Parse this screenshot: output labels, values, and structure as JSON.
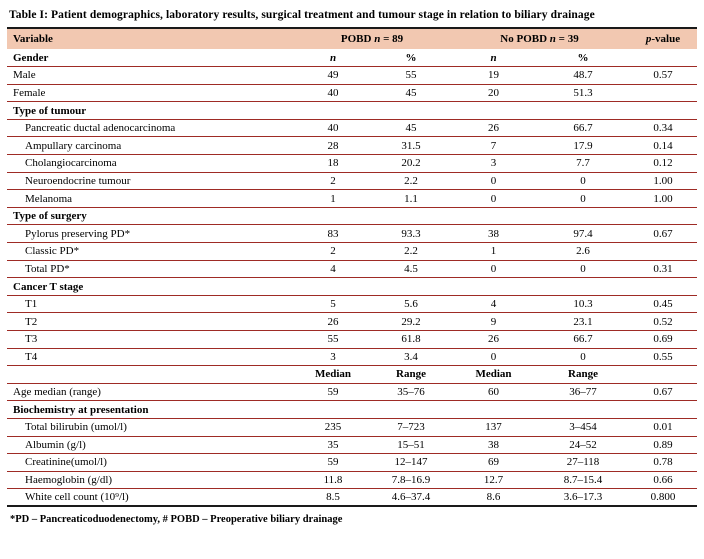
{
  "colors": {
    "header_bg": "#f2c8b1",
    "row_rule": "#9e2b25",
    "table_border": "#1a1a1a",
    "text": "#000000"
  },
  "title": "Table I: Patient demographics, laboratory results, surgical treatment and tumour stage in relation to biliary drainage",
  "table": {
    "header": {
      "variable": "Variable",
      "group1_pre": "POBD ",
      "group1_post": " = 89",
      "group2_pre": "No POBD ",
      "group2_post": " = 39",
      "n_italic": "n",
      "p_italic": "p",
      "pvalue_rest": "-value"
    },
    "rows": [
      {
        "type": "colheader",
        "label": "Gender",
        "indent": false,
        "c": [
          "n",
          "%",
          "n",
          "%",
          ""
        ]
      },
      {
        "type": "data",
        "label": "Male",
        "indent": false,
        "c": [
          "49",
          "55",
          "19",
          "48.7",
          "0.57"
        ]
      },
      {
        "type": "data",
        "label": "Female",
        "indent": false,
        "c": [
          "40",
          "45",
          "20",
          "51.3",
          ""
        ]
      },
      {
        "type": "section",
        "label": "Type of tumour",
        "indent": false,
        "c": [
          "",
          "",
          "",
          "",
          ""
        ]
      },
      {
        "type": "data",
        "label": "Pancreatic ductal adenocarcinoma",
        "indent": true,
        "c": [
          "40",
          "45",
          "26",
          "66.7",
          "0.34"
        ]
      },
      {
        "type": "data",
        "label": "Ampullary carcinoma",
        "indent": true,
        "c": [
          "28",
          "31.5",
          "7",
          "17.9",
          "0.14"
        ]
      },
      {
        "type": "data",
        "label": "Cholangiocarcinoma",
        "indent": true,
        "c": [
          "18",
          "20.2",
          "3",
          "7.7",
          "0.12"
        ]
      },
      {
        "type": "data",
        "label": "Neuroendocrine tumour",
        "indent": true,
        "c": [
          "2",
          "2.2",
          "0",
          "0",
          "1.00"
        ]
      },
      {
        "type": "data",
        "label": "Melanoma",
        "indent": true,
        "c": [
          "1",
          "1.1",
          "0",
          "0",
          "1.00"
        ]
      },
      {
        "type": "section",
        "label": "Type of surgery",
        "indent": false,
        "c": [
          "",
          "",
          "",
          "",
          ""
        ]
      },
      {
        "type": "data",
        "label": "Pylorus preserving PD*",
        "indent": true,
        "c": [
          "83",
          "93.3",
          "38",
          "97.4",
          "0.67"
        ]
      },
      {
        "type": "data",
        "label": "Classic PD*",
        "indent": true,
        "c": [
          "2",
          "2.2",
          "1",
          "2.6",
          ""
        ]
      },
      {
        "type": "data",
        "label": "Total PD*",
        "indent": true,
        "c": [
          "4",
          "4.5",
          "0",
          "0",
          "0.31"
        ]
      },
      {
        "type": "section",
        "label": "Cancer T stage",
        "indent": false,
        "c": [
          "",
          "",
          "",
          "",
          ""
        ]
      },
      {
        "type": "data",
        "label": "T1",
        "indent": true,
        "c": [
          "5",
          "5.6",
          "4",
          "10.3",
          "0.45"
        ]
      },
      {
        "type": "data",
        "label": "T2",
        "indent": true,
        "c": [
          "26",
          "29.2",
          "9",
          "23.1",
          "0.52"
        ]
      },
      {
        "type": "data",
        "label": "T3",
        "indent": true,
        "c": [
          "55",
          "61.8",
          "26",
          "66.7",
          "0.69"
        ]
      },
      {
        "type": "data",
        "label": "T4",
        "indent": true,
        "c": [
          "3",
          "3.4",
          "0",
          "0",
          "0.55"
        ]
      },
      {
        "type": "subheader",
        "label": "",
        "indent": false,
        "c": [
          "Median",
          "Range",
          "Median",
          "Range",
          ""
        ]
      },
      {
        "type": "data",
        "label": "Age median (range)",
        "indent": false,
        "c": [
          "59",
          "35–76",
          "60",
          "36–77",
          "0.67"
        ]
      },
      {
        "type": "section",
        "label": "Biochemistry at presentation",
        "indent": false,
        "c": [
          "",
          "",
          "",
          "",
          ""
        ]
      },
      {
        "type": "data",
        "label": "Total bilirubin (umol/l)",
        "indent": true,
        "c": [
          "235",
          "7–723",
          "137",
          "3–454",
          "0.01"
        ]
      },
      {
        "type": "data",
        "label": "Albumin (g/l)",
        "indent": true,
        "c": [
          "35",
          "15–51",
          "38",
          "24–52",
          "0.89"
        ]
      },
      {
        "type": "data",
        "label": "Creatinine(umol/l)",
        "indent": true,
        "c": [
          "59",
          "12–147",
          "69",
          "27–118",
          "0.78"
        ]
      },
      {
        "type": "data",
        "label": "Haemoglobin (g/dl)",
        "indent": true,
        "c": [
          "11.8",
          "7.8–16.9",
          "12.7",
          "8.7–15.4",
          "0.66"
        ]
      },
      {
        "type": "data",
        "label": "White cell count (10⁹/l)",
        "indent": true,
        "c": [
          "8.5",
          "4.6–37.4",
          "8.6",
          "3.6–17.3",
          "0.800"
        ]
      }
    ]
  },
  "footnote": "*PD – Pancreaticoduodenectomy,  # POBD – Preoperative biliary drainage"
}
